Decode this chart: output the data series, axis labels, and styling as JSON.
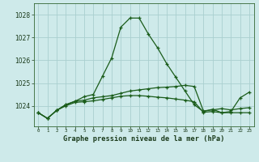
{
  "title": "Graphe pression niveau de la mer (hPa)",
  "background_color": "#ceeaea",
  "grid_color": "#aacfcf",
  "line_color": "#1a5c1a",
  "x_labels": [
    "0",
    "1",
    "2",
    "3",
    "4",
    "5",
    "6",
    "7",
    "8",
    "9",
    "10",
    "11",
    "12",
    "13",
    "14",
    "15",
    "16",
    "17",
    "18",
    "19",
    "20",
    "21",
    "22",
    "23"
  ],
  "ylim": [
    1023.1,
    1028.5
  ],
  "yticks": [
    1024,
    1025,
    1026,
    1027,
    1028
  ],
  "series_main": [
    1023.7,
    1023.45,
    1023.8,
    1024.05,
    1024.2,
    1024.4,
    1024.5,
    1025.3,
    1026.1,
    1027.45,
    1027.85,
    1027.85,
    1027.15,
    1026.55,
    1025.85,
    1025.25,
    1024.65,
    1024.05,
    1023.75,
    1023.85,
    1023.7,
    1023.75,
    1024.35,
    1024.6
  ],
  "series_slow": [
    1023.7,
    1023.45,
    1023.8,
    1024.05,
    1024.2,
    1024.25,
    1024.35,
    1024.4,
    1024.45,
    1024.55,
    1024.65,
    1024.7,
    1024.75,
    1024.8,
    1024.82,
    1024.85,
    1024.9,
    1024.85,
    1023.78,
    1023.82,
    1023.88,
    1023.82,
    1023.88,
    1023.92
  ],
  "series_flat": [
    1023.7,
    1023.45,
    1023.8,
    1024.0,
    1024.15,
    1024.18,
    1024.22,
    1024.28,
    1024.35,
    1024.42,
    1024.45,
    1024.45,
    1024.42,
    1024.38,
    1024.35,
    1024.3,
    1024.25,
    1024.18,
    1023.72,
    1023.75,
    1023.7,
    1023.7,
    1023.7,
    1023.7
  ]
}
